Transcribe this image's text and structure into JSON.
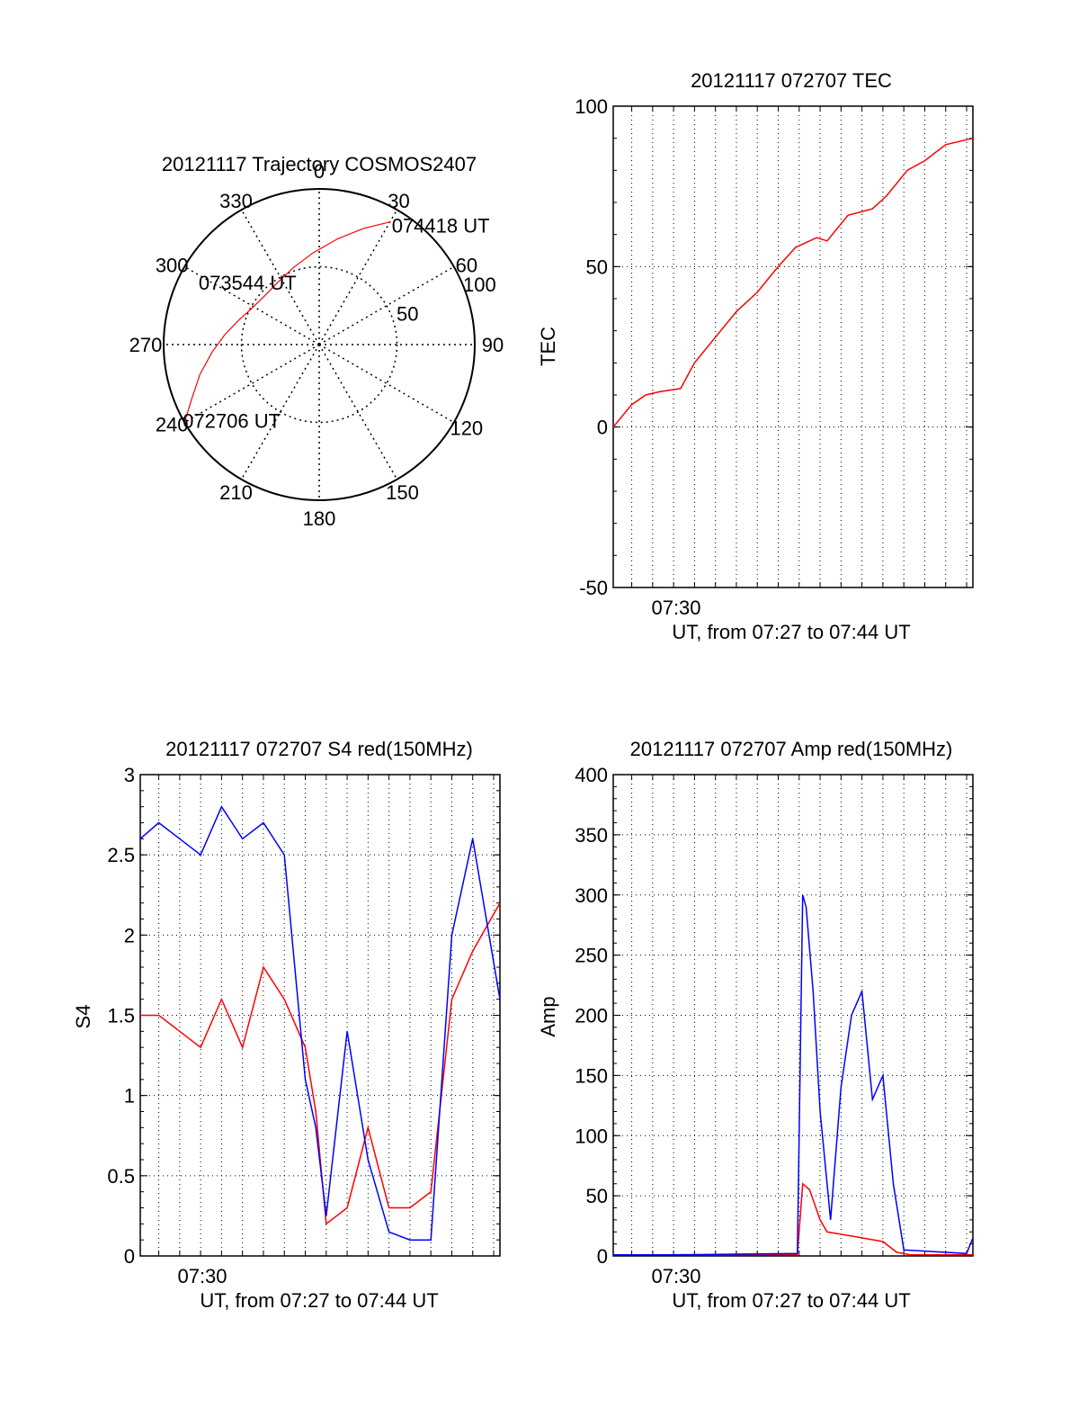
{
  "colors": {
    "red": "#ff0000",
    "blue": "#0000ff",
    "axis": "#000000",
    "grid": "#000000",
    "background": "#ffffff"
  },
  "chart_data": [
    {
      "id": "trajectory",
      "type": "polar",
      "title": "20121117 Trajectory COSMOS2407",
      "angle_ticks": [
        "0",
        "30",
        "60",
        "90",
        "120",
        "150",
        "180",
        "210",
        "240",
        "270",
        "300",
        "330"
      ],
      "radius_ticks": [
        "50",
        "100"
      ],
      "radius_range": [
        0,
        100
      ],
      "grid": true,
      "track": {
        "azimuth_deg": [
          240,
          247,
          256,
          266,
          276,
          287,
          299,
          312,
          326,
          341,
          356,
          10,
          21,
          30
        ],
        "radius": [
          100,
          89,
          79,
          69,
          61,
          54,
          49,
          47,
          48,
          52,
          59,
          69,
          80,
          91
        ]
      },
      "annotations": [
        {
          "text": "072706 UT",
          "azimuth_deg": 240,
          "radius": 100
        },
        {
          "text": "073544 UT",
          "azimuth_deg": 299,
          "radius": 49
        },
        {
          "text": "074418 UT",
          "azimuth_deg": 30,
          "radius": 91
        }
      ]
    },
    {
      "id": "tec",
      "type": "line",
      "title": "20121117 072707 TEC",
      "ylabel": "TEC",
      "xlabel": "UT, from 07:27 to 07:44 UT",
      "x_tick_label": "07:30",
      "xlim": [
        "07:27:07",
        "07:44:18"
      ],
      "ylim": [
        -50,
        100
      ],
      "y_ticks": [
        "-50",
        "0",
        "50",
        "100"
      ],
      "grid": true,
      "series": [
        {
          "color": "red",
          "x": [
            "07:27:07",
            "07:28:00",
            "07:28:40",
            "07:29:20",
            "07:30:20",
            "07:31:00",
            "07:32:00",
            "07:33:00",
            "07:34:00",
            "07:35:00",
            "07:35:50",
            "07:36:30",
            "07:36:50",
            "07:37:20",
            "07:38:20",
            "07:39:30",
            "07:40:10",
            "07:41:10",
            "07:42:00",
            "07:43:00",
            "07:44:18"
          ],
          "y": [
            0,
            7,
            10,
            11,
            12,
            20,
            28,
            36,
            42,
            50,
            56,
            58,
            59,
            58,
            66,
            68,
            72,
            80,
            83,
            88,
            90
          ]
        }
      ]
    },
    {
      "id": "s4",
      "type": "line",
      "title": "20121117 072707 S4 red(150MHz)",
      "ylabel": "S4",
      "xlabel": "UT, from 07:27 to 07:44 UT",
      "x_tick_label": "07:30",
      "xlim": [
        "07:27:07",
        "07:44:18"
      ],
      "ylim": [
        0,
        3
      ],
      "y_ticks": [
        "0",
        "0.5",
        "1",
        "1.5",
        "2",
        "2.5",
        "3"
      ],
      "grid": true,
      "series": [
        {
          "color": "red",
          "x": [
            "07:27:07",
            "07:28:00",
            "07:29:00",
            "07:30:00",
            "07:31:00",
            "07:32:00",
            "07:33:00",
            "07:34:00",
            "07:35:00",
            "07:35:30",
            "07:36:00",
            "07:37:00",
            "07:38:00",
            "07:39:00",
            "07:40:00",
            "07:41:00",
            "07:42:00",
            "07:43:00",
            "07:44:18"
          ],
          "y": [
            1.5,
            1.5,
            1.4,
            1.3,
            1.6,
            1.3,
            1.8,
            1.6,
            1.3,
            0.9,
            0.2,
            0.3,
            0.8,
            0.3,
            0.3,
            0.4,
            1.6,
            1.9,
            2.2
          ]
        },
        {
          "color": "blue",
          "x": [
            "07:27:07",
            "07:28:00",
            "07:29:00",
            "07:30:00",
            "07:31:00",
            "07:32:00",
            "07:33:00",
            "07:34:00",
            "07:35:00",
            "07:35:30",
            "07:36:00",
            "07:37:00",
            "07:38:00",
            "07:39:00",
            "07:40:00",
            "07:41:00",
            "07:42:00",
            "07:43:00",
            "07:44:18"
          ],
          "y": [
            2.6,
            2.7,
            2.6,
            2.5,
            2.8,
            2.6,
            2.7,
            2.5,
            1.1,
            0.8,
            0.25,
            1.4,
            0.6,
            0.15,
            0.1,
            0.1,
            2.0,
            2.6,
            1.6
          ]
        }
      ]
    },
    {
      "id": "amp",
      "type": "line",
      "title": "20121117 072707 Amp red(150MHz)",
      "ylabel": "Amp",
      "xlabel": "UT, from 07:27 to 07:44 UT",
      "x_tick_label": "07:30",
      "xlim": [
        "07:27:07",
        "07:44:18"
      ],
      "ylim": [
        0,
        400
      ],
      "y_ticks": [
        "0",
        "50",
        "100",
        "150",
        "200",
        "250",
        "300",
        "350",
        "400"
      ],
      "grid": true,
      "series": [
        {
          "color": "red",
          "x": [
            "07:27:07",
            "07:30:00",
            "07:35:55",
            "07:36:10",
            "07:36:30",
            "07:37:00",
            "07:37:20",
            "07:38:00",
            "07:39:00",
            "07:40:00",
            "07:40:40",
            "07:41:20",
            "07:44:18"
          ],
          "y": [
            1,
            1,
            1,
            60,
            55,
            30,
            20,
            18,
            15,
            12,
            3,
            1,
            1
          ]
        },
        {
          "color": "blue",
          "x": [
            "07:27:07",
            "07:30:00",
            "07:35:55",
            "07:36:10",
            "07:36:20",
            "07:36:40",
            "07:37:00",
            "07:37:30",
            "07:38:00",
            "07:38:30",
            "07:39:00",
            "07:39:30",
            "07:40:00",
            "07:40:30",
            "07:41:00",
            "07:44:00",
            "07:44:18"
          ],
          "y": [
            1,
            1,
            2,
            300,
            290,
            220,
            120,
            30,
            140,
            200,
            220,
            130,
            150,
            60,
            5,
            2,
            15
          ]
        }
      ]
    }
  ]
}
